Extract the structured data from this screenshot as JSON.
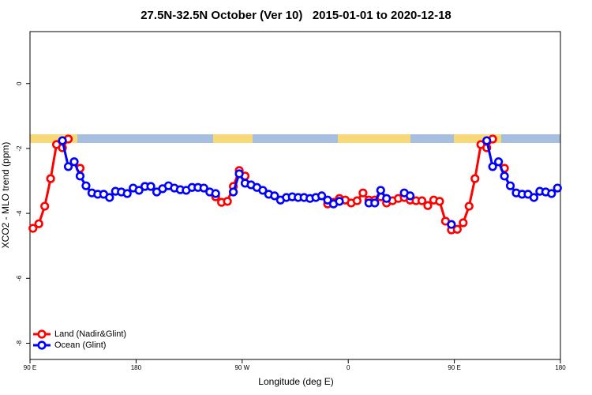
{
  "chart_data": {
    "type": "line",
    "title": "27.5N-32.5N October (Ver 10)   2015-01-01 to 2020-12-18",
    "x_label": "Longitude (deg E)",
    "y_label": "XCO2 - MLO trend (ppm)",
    "x": [
      92.5,
      97.5,
      102.5,
      107.5,
      112.5,
      117.5,
      122.5,
      127.5,
      132.5,
      137.5,
      142.5,
      147.5,
      152.5,
      157.5,
      162.5,
      167.5,
      172.5,
      177.5,
      182.5,
      187.5,
      192.5,
      197.5,
      202.5,
      207.5,
      212.5,
      217.5,
      222.5,
      227.5,
      232.5,
      237.5,
      242.5,
      247.5,
      252.5,
      257.5,
      262.5,
      267.5,
      272.5,
      277.5,
      282.5,
      287.5,
      292.5,
      297.5,
      302.5,
      307.5,
      312.5,
      317.5,
      322.5,
      327.5,
      332.5,
      337.5,
      342.5,
      347.5,
      352.5,
      357.5,
      362.5,
      367.5,
      372.5,
      377.5,
      382.5,
      387.5,
      392.5,
      397.5,
      402.5,
      407.5,
      412.5,
      417.5,
      422.5,
      427.5,
      432.5,
      437.5,
      442.5,
      447.5,
      452.5,
      457.5,
      462.5,
      467.5,
      472.5,
      477.5,
      482.5,
      487.5,
      492.5,
      497.5,
      502.5,
      507.5,
      512.5,
      517.5,
      522.5,
      527.5,
      532.5,
      537.5
    ],
    "series": [
      {
        "name": "Land (Nadir&Glint)",
        "color": "#ff0000",
        "values": [
          -4.46,
          -4.32,
          -3.78,
          -2.93,
          -1.88,
          -1.98,
          -1.71,
          null,
          -2.61,
          null,
          null,
          null,
          null,
          null,
          null,
          null,
          null,
          null,
          null,
          null,
          null,
          null,
          null,
          null,
          null,
          null,
          null,
          null,
          null,
          null,
          null,
          -3.49,
          -3.66,
          -3.63,
          -3.17,
          -2.68,
          -2.85,
          null,
          null,
          null,
          null,
          null,
          null,
          null,
          null,
          null,
          null,
          null,
          null,
          null,
          -3.71,
          -3.66,
          -3.54,
          -3.59,
          -3.68,
          -3.61,
          -3.37,
          -3.59,
          -3.59,
          -3.49,
          -3.68,
          -3.61,
          -3.54,
          -3.51,
          -3.59,
          -3.61,
          -3.61,
          -3.76,
          -3.59,
          -3.63,
          -4.24,
          -4.51,
          -4.49,
          -4.29,
          -3.78,
          -2.93,
          -1.88,
          -1.98,
          -1.71,
          null,
          -2.61,
          null,
          null,
          null,
          null,
          null,
          null,
          null,
          null,
          null
        ]
      },
      {
        "name": "Ocean (Glint)",
        "color": "#0000ff",
        "values": [
          null,
          null,
          null,
          null,
          null,
          -1.76,
          -2.56,
          -2.41,
          -2.85,
          -3.15,
          -3.37,
          -3.41,
          -3.41,
          -3.51,
          -3.32,
          -3.34,
          -3.39,
          -3.22,
          -3.29,
          -3.17,
          -3.17,
          -3.34,
          -3.24,
          -3.15,
          -3.22,
          -3.27,
          -3.29,
          -3.2,
          -3.2,
          -3.22,
          -3.34,
          -3.39,
          null,
          null,
          -3.34,
          -2.78,
          -3.07,
          -3.12,
          -3.2,
          -3.29,
          -3.41,
          -3.46,
          -3.59,
          -3.51,
          -3.49,
          -3.51,
          -3.51,
          -3.54,
          -3.51,
          -3.46,
          -3.59,
          -3.71,
          -3.63,
          null,
          null,
          null,
          null,
          -3.68,
          -3.68,
          -3.29,
          -3.54,
          null,
          null,
          -3.37,
          -3.46,
          null,
          null,
          null,
          null,
          null,
          null,
          -4.34,
          null,
          null,
          null,
          null,
          null,
          -1.76,
          -2.56,
          -2.41,
          -2.85,
          -3.15,
          -3.37,
          -3.41,
          -3.41,
          -3.51,
          -3.32,
          -3.34,
          -3.39,
          -3.22
        ]
      }
    ],
    "xlim": [
      90,
      540
    ],
    "xticks": [
      {
        "value": 90,
        "label": "90 E"
      },
      180,
      {
        "value": 270,
        "label": "90 W"
      },
      {
        "value": 360,
        "label": "0"
      },
      {
        "value": 450,
        "label": "90 E"
      },
      {
        "value": 540,
        "label": "180"
      }
    ],
    "ylim": [
      -8.5,
      1.6
    ],
    "yticks": [
      0,
      -2,
      -4,
      -6,
      -8
    ],
    "legend": "bottomleft"
  }
}
